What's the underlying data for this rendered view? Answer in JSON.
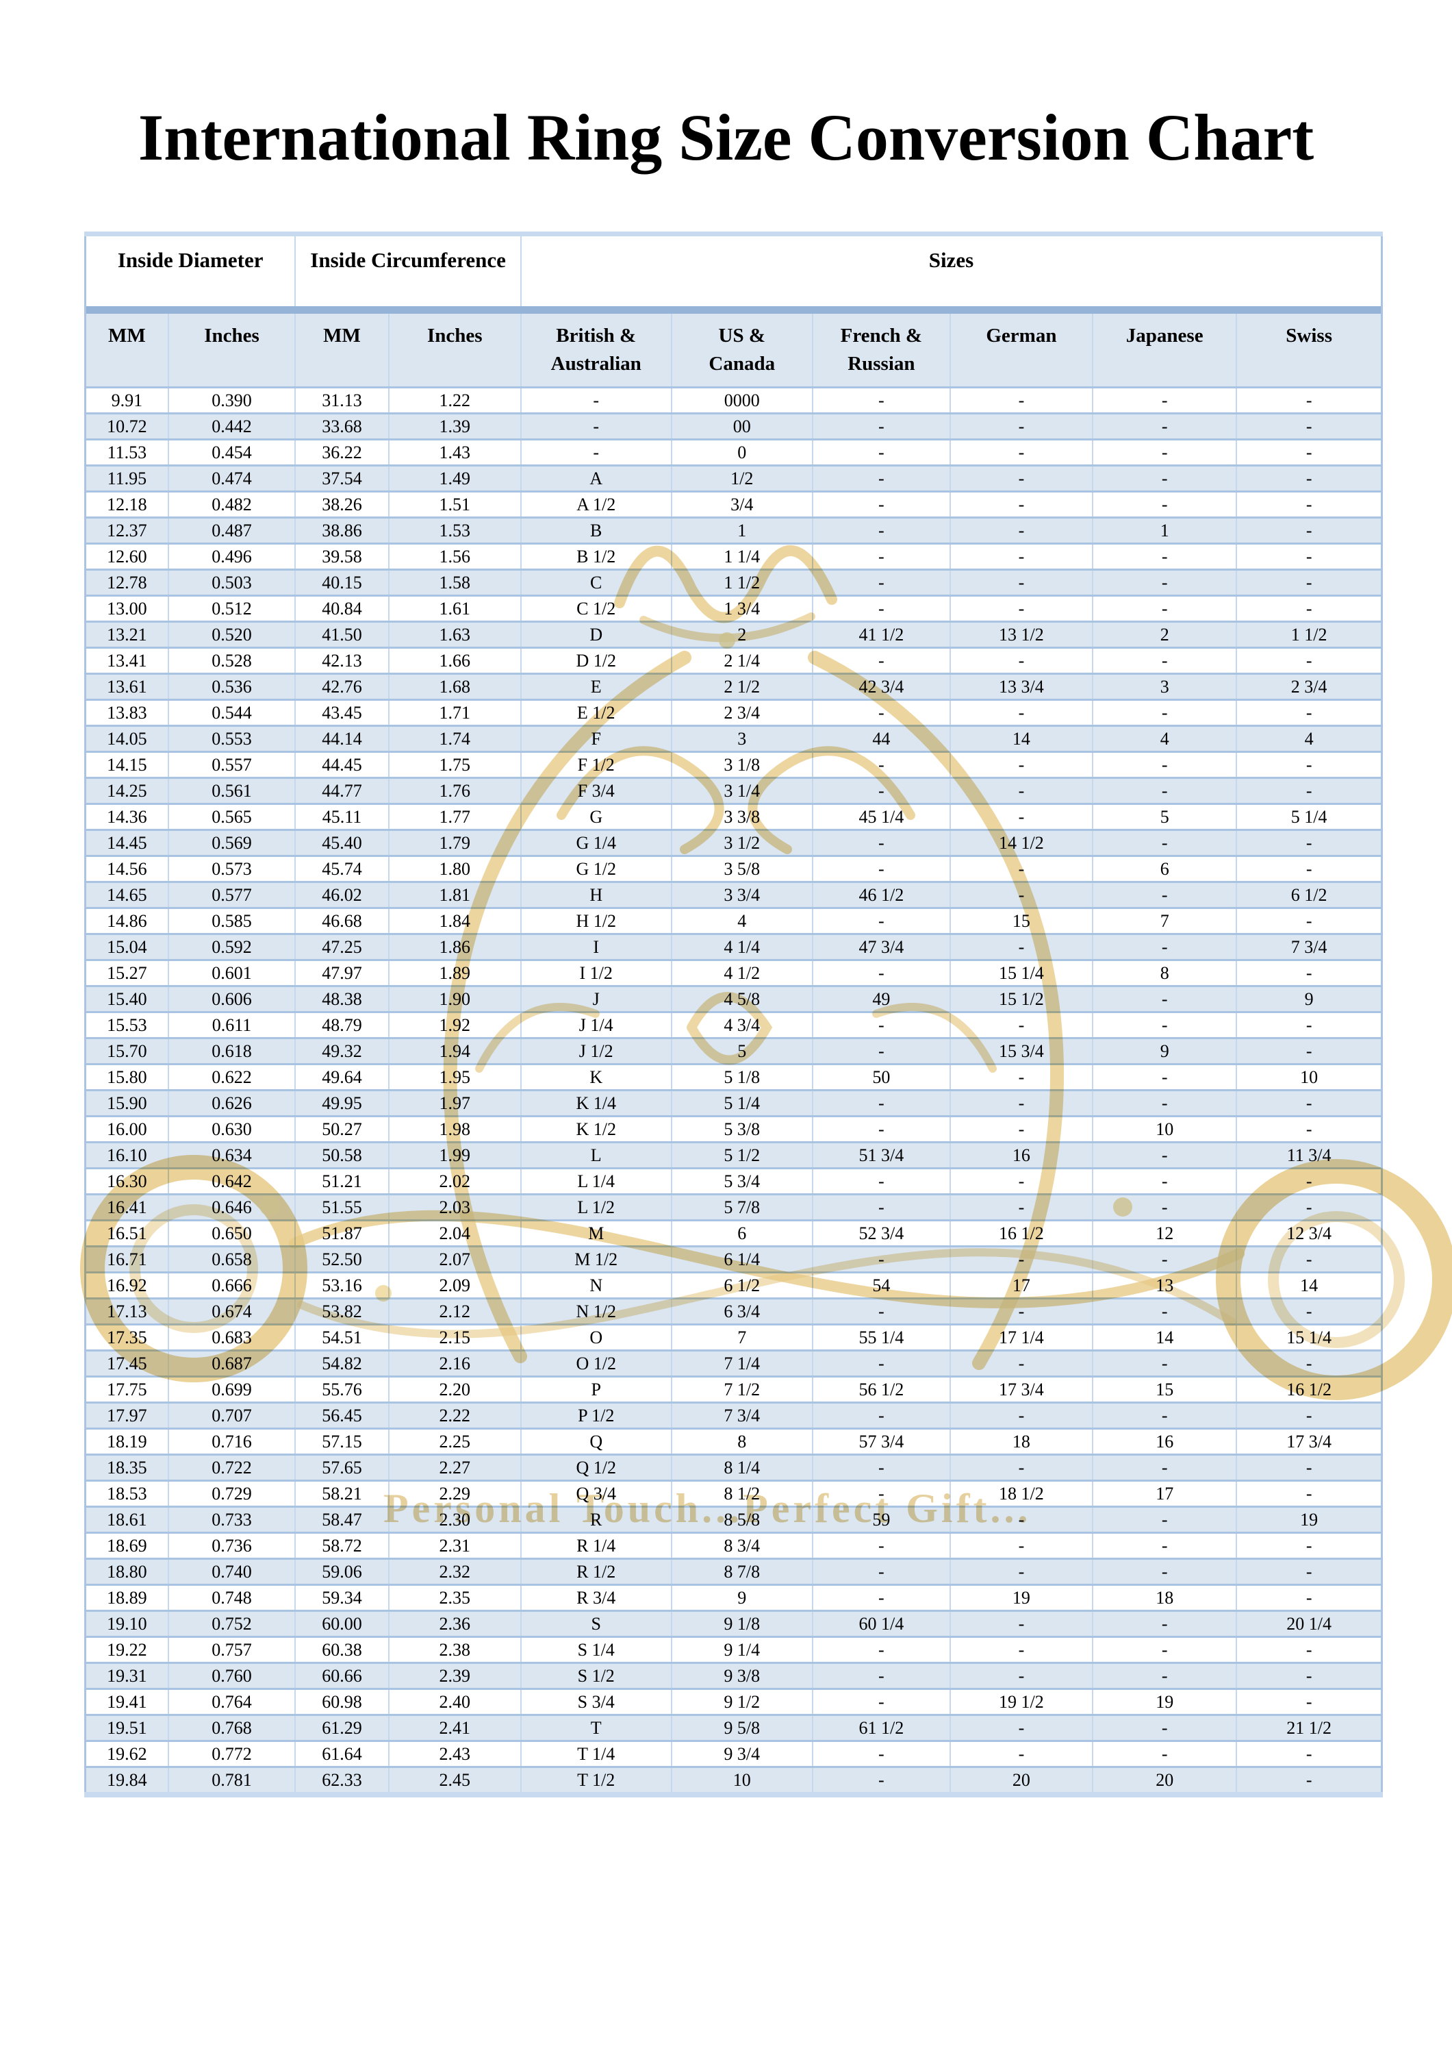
{
  "title": "International Ring Size Conversion Chart",
  "watermark": {
    "text": "Personal Touch...Perfect Gift...",
    "gold_color": "#d2a23c"
  },
  "colors": {
    "row_alt": "#dce6f1",
    "header_band": "#95b3d7",
    "table_border": "#aac4e2"
  },
  "table": {
    "group_headers": [
      {
        "label": "Inside Diameter",
        "colspan": 2
      },
      {
        "label": "Inside Circumference",
        "colspan": 2
      },
      {
        "label": "Sizes",
        "colspan": 6
      }
    ],
    "columns": [
      "MM",
      "Inches",
      "MM",
      "Inches",
      "British & Australian",
      "US & Canada",
      "French & Russian",
      "German",
      "Japanese",
      "Swiss"
    ],
    "rows": [
      [
        "9.91",
        "0.390",
        "31.13",
        "1.22",
        "-",
        "0000",
        "-",
        "-",
        "-",
        "-"
      ],
      [
        "10.72",
        "0.442",
        "33.68",
        "1.39",
        "-",
        "00",
        "-",
        "-",
        "-",
        "-"
      ],
      [
        "11.53",
        "0.454",
        "36.22",
        "1.43",
        "-",
        "0",
        "-",
        "-",
        "-",
        "-"
      ],
      [
        "11.95",
        "0.474",
        "37.54",
        "1.49",
        "A",
        "1/2",
        "-",
        "-",
        "-",
        "-"
      ],
      [
        "12.18",
        "0.482",
        "38.26",
        "1.51",
        "A 1/2",
        "3/4",
        "-",
        "-",
        "-",
        "-"
      ],
      [
        "12.37",
        "0.487",
        "38.86",
        "1.53",
        "B",
        "1",
        "-",
        "-",
        "1",
        "-"
      ],
      [
        "12.60",
        "0.496",
        "39.58",
        "1.56",
        "B 1/2",
        "1 1/4",
        "-",
        "-",
        "-",
        "-"
      ],
      [
        "12.78",
        "0.503",
        "40.15",
        "1.58",
        "C",
        "1 1/2",
        "-",
        "-",
        "-",
        "-"
      ],
      [
        "13.00",
        "0.512",
        "40.84",
        "1.61",
        "C 1/2",
        "1 3/4",
        "-",
        "-",
        "-",
        "-"
      ],
      [
        "13.21",
        "0.520",
        "41.50",
        "1.63",
        "D",
        "2",
        "41 1/2",
        "13 1/2",
        "2",
        "1 1/2"
      ],
      [
        "13.41",
        "0.528",
        "42.13",
        "1.66",
        "D 1/2",
        "2 1/4",
        "-",
        "-",
        "-",
        "-"
      ],
      [
        "13.61",
        "0.536",
        "42.76",
        "1.68",
        "E",
        "2 1/2",
        "42 3/4",
        "13 3/4",
        "3",
        "2 3/4"
      ],
      [
        "13.83",
        "0.544",
        "43.45",
        "1.71",
        "E 1/2",
        "2 3/4",
        "-",
        "-",
        "-",
        "-"
      ],
      [
        "14.05",
        "0.553",
        "44.14",
        "1.74",
        "F",
        "3",
        "44",
        "14",
        "4",
        "4"
      ],
      [
        "14.15",
        "0.557",
        "44.45",
        "1.75",
        "F 1/2",
        "3 1/8",
        "-",
        "-",
        "-",
        "-"
      ],
      [
        "14.25",
        "0.561",
        "44.77",
        "1.76",
        "F 3/4",
        "3 1/4",
        "-",
        "-",
        "-",
        "-"
      ],
      [
        "14.36",
        "0.565",
        "45.11",
        "1.77",
        "G",
        "3 3/8",
        "45 1/4",
        "-",
        "5",
        "5 1/4"
      ],
      [
        "14.45",
        "0.569",
        "45.40",
        "1.79",
        "G 1/4",
        "3 1/2",
        "-",
        "14 1/2",
        "-",
        "-"
      ],
      [
        "14.56",
        "0.573",
        "45.74",
        "1.80",
        "G 1/2",
        "3 5/8",
        "-",
        "-",
        "6",
        "-"
      ],
      [
        "14.65",
        "0.577",
        "46.02",
        "1.81",
        "H",
        "3 3/4",
        "46 1/2",
        "-",
        "-",
        "6 1/2"
      ],
      [
        "14.86",
        "0.585",
        "46.68",
        "1.84",
        "H 1/2",
        "4",
        "-",
        "15",
        "7",
        "-"
      ],
      [
        "15.04",
        "0.592",
        "47.25",
        "1.86",
        "I",
        "4 1/4",
        "47 3/4",
        "-",
        "-",
        "7 3/4"
      ],
      [
        "15.27",
        "0.601",
        "47.97",
        "1.89",
        "I 1/2",
        "4 1/2",
        "-",
        "15 1/4",
        "8",
        "-"
      ],
      [
        "15.40",
        "0.606",
        "48.38",
        "1.90",
        "J",
        "4 5/8",
        "49",
        "15 1/2",
        "-",
        "9"
      ],
      [
        "15.53",
        "0.611",
        "48.79",
        "1.92",
        "J 1/4",
        "4 3/4",
        "-",
        "-",
        "-",
        "-"
      ],
      [
        "15.70",
        "0.618",
        "49.32",
        "1.94",
        "J 1/2",
        "5",
        "-",
        "15 3/4",
        "9",
        "-"
      ],
      [
        "15.80",
        "0.622",
        "49.64",
        "1.95",
        "K",
        "5 1/8",
        "50",
        "-",
        "-",
        "10"
      ],
      [
        "15.90",
        "0.626",
        "49.95",
        "1.97",
        "K 1/4",
        "5 1/4",
        "-",
        "-",
        "-",
        "-"
      ],
      [
        "16.00",
        "0.630",
        "50.27",
        "1.98",
        "K 1/2",
        "5 3/8",
        "-",
        "-",
        "10",
        "-"
      ],
      [
        "16.10",
        "0.634",
        "50.58",
        "1.99",
        "L",
        "5 1/2",
        "51 3/4",
        "16",
        "-",
        "11 3/4"
      ],
      [
        "16.30",
        "0.642",
        "51.21",
        "2.02",
        "L 1/4",
        "5 3/4",
        "-",
        "-",
        "-",
        "-"
      ],
      [
        "16.41",
        "0.646",
        "51.55",
        "2.03",
        "L 1/2",
        "5 7/8",
        "-",
        "-",
        "-",
        "-"
      ],
      [
        "16.51",
        "0.650",
        "51.87",
        "2.04",
        "M",
        "6",
        "52 3/4",
        "16 1/2",
        "12",
        "12 3/4"
      ],
      [
        "16.71",
        "0.658",
        "52.50",
        "2.07",
        "M 1/2",
        "6 1/4",
        "-",
        "-",
        "-",
        "-"
      ],
      [
        "16.92",
        "0.666",
        "53.16",
        "2.09",
        "N",
        "6 1/2",
        "54",
        "17",
        "13",
        "14"
      ],
      [
        "17.13",
        "0.674",
        "53.82",
        "2.12",
        "N 1/2",
        "6 3/4",
        "-",
        "-",
        "-",
        "-"
      ],
      [
        "17.35",
        "0.683",
        "54.51",
        "2.15",
        "O",
        "7",
        "55 1/4",
        "17 1/4",
        "14",
        "15 1/4"
      ],
      [
        "17.45",
        "0.687",
        "54.82",
        "2.16",
        "O 1/2",
        "7 1/4",
        "-",
        "-",
        "-",
        "-"
      ],
      [
        "17.75",
        "0.699",
        "55.76",
        "2.20",
        "P",
        "7 1/2",
        "56 1/2",
        "17 3/4",
        "15",
        "16 1/2"
      ],
      [
        "17.97",
        "0.707",
        "56.45",
        "2.22",
        "P 1/2",
        "7 3/4",
        "-",
        "-",
        "-",
        "-"
      ],
      [
        "18.19",
        "0.716",
        "57.15",
        "2.25",
        "Q",
        "8",
        "57 3/4",
        "18",
        "16",
        "17 3/4"
      ],
      [
        "18.35",
        "0.722",
        "57.65",
        "2.27",
        "Q 1/2",
        "8 1/4",
        "-",
        "-",
        "-",
        "-"
      ],
      [
        "18.53",
        "0.729",
        "58.21",
        "2.29",
        "Q 3/4",
        "8 1/2",
        "-",
        "18 1/2",
        "17",
        "-"
      ],
      [
        "18.61",
        "0.733",
        "58.47",
        "2.30",
        "R",
        "8 5/8",
        "59",
        "-",
        "-",
        "19"
      ],
      [
        "18.69",
        "0.736",
        "58.72",
        "2.31",
        "R 1/4",
        "8 3/4",
        "-",
        "-",
        "-",
        "-"
      ],
      [
        "18.80",
        "0.740",
        "59.06",
        "2.32",
        "R 1/2",
        "8 7/8",
        "-",
        "-",
        "-",
        "-"
      ],
      [
        "18.89",
        "0.748",
        "59.34",
        "2.35",
        "R 3/4",
        "9",
        "-",
        "19",
        "18",
        "-"
      ],
      [
        "19.10",
        "0.752",
        "60.00",
        "2.36",
        "S",
        "9 1/8",
        "60 1/4",
        "-",
        "-",
        "20 1/4"
      ],
      [
        "19.22",
        "0.757",
        "60.38",
        "2.38",
        "S 1/4",
        "9 1/4",
        "-",
        "-",
        "-",
        "-"
      ],
      [
        "19.31",
        "0.760",
        "60.66",
        "2.39",
        "S 1/2",
        "9 3/8",
        "-",
        "-",
        "-",
        "-"
      ],
      [
        "19.41",
        "0.764",
        "60.98",
        "2.40",
        "S 3/4",
        "9 1/2",
        "-",
        "19 1/2",
        "19",
        "-"
      ],
      [
        "19.51",
        "0.768",
        "61.29",
        "2.41",
        "T",
        "9 5/8",
        "61 1/2",
        "-",
        "-",
        "21 1/2"
      ],
      [
        "19.62",
        "0.772",
        "61.64",
        "2.43",
        "T 1/4",
        "9 3/4",
        "-",
        "-",
        "-",
        "-"
      ],
      [
        "19.84",
        "0.781",
        "62.33",
        "2.45",
        "T 1/2",
        "10",
        "-",
        "20",
        "20",
        "-"
      ]
    ]
  }
}
